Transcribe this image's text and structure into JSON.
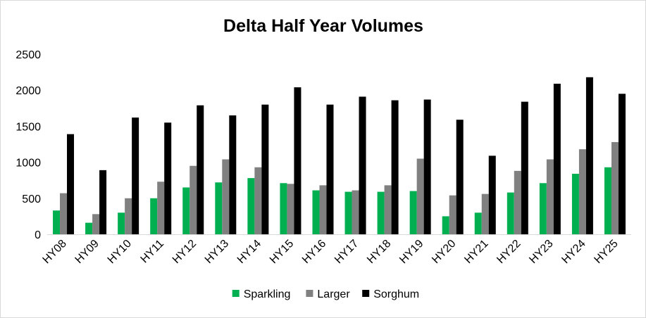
{
  "chart_data": {
    "type": "bar",
    "title": "Delta Half Year Volumes",
    "xlabel": "",
    "ylabel": "",
    "categories": [
      "HY08",
      "HY09",
      "HY10",
      "HY11",
      "HY12",
      "HY13",
      "HY14",
      "HY15",
      "HY16",
      "HY17",
      "HY18",
      "HY19",
      "HY20",
      "HY21",
      "HY22",
      "HY23",
      "HY24",
      "HY25"
    ],
    "series": [
      {
        "name": "Sparkling",
        "color": "#00b050",
        "values": [
          330,
          160,
          300,
          500,
          650,
          720,
          780,
          710,
          610,
          590,
          590,
          600,
          250,
          300,
          580,
          710,
          840,
          930
        ]
      },
      {
        "name": "Larger",
        "color": "#808080",
        "values": [
          570,
          280,
          500,
          730,
          950,
          1040,
          930,
          700,
          680,
          610,
          680,
          1050,
          540,
          560,
          880,
          1040,
          1180,
          1280
        ]
      },
      {
        "name": "Sorghum",
        "color": "#000000",
        "values": [
          1390,
          890,
          1620,
          1550,
          1790,
          1650,
          1800,
          2040,
          1800,
          1910,
          1860,
          1870,
          1590,
          1090,
          1840,
          2090,
          2180,
          1950
        ]
      }
    ],
    "ylim": [
      0,
      2500
    ],
    "yticks": [
      0,
      500,
      1000,
      1500,
      2000,
      2500
    ],
    "grid": false,
    "legend_position": "bottom"
  }
}
